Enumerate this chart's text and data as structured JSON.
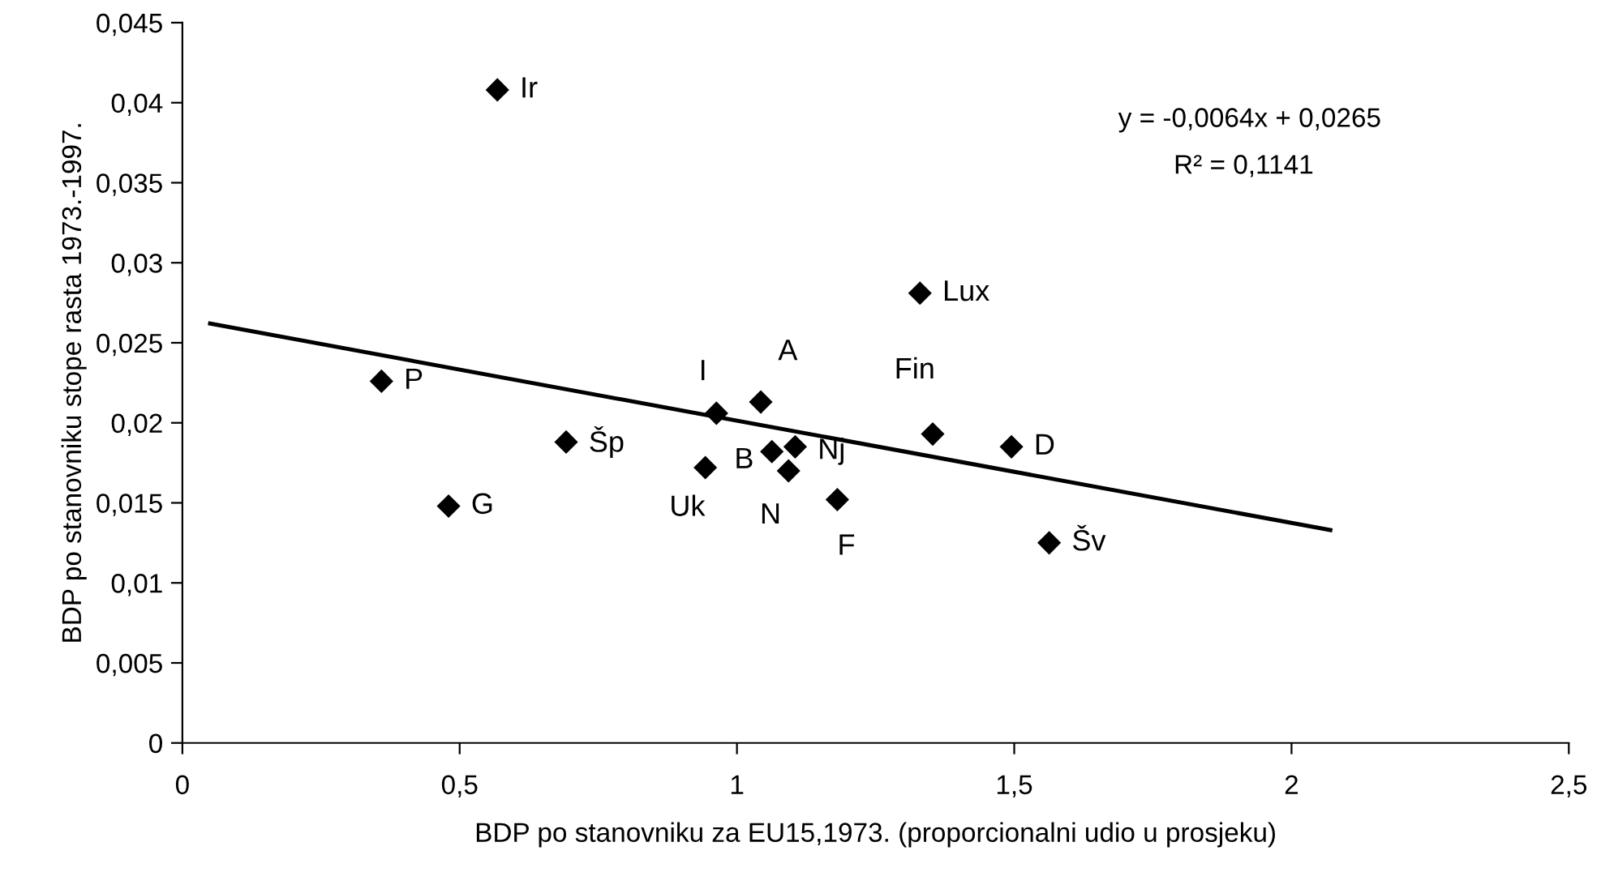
{
  "chart_data": {
    "type": "scatter",
    "xlabel": "BDP po stanovniku za EU15,1973. (proporcionalni udio u prosjeku)",
    "ylabel": "BDP po stanovniku stope rasta 1973.-1997.",
    "xlim": [
      0,
      2.5
    ],
    "ylim": [
      0,
      0.045
    ],
    "xticks": [
      0,
      {
        "value": 0.5,
        "label": "0,5"
      },
      1,
      {
        "value": 1.5,
        "label": "1,5"
      },
      2,
      {
        "value": 2.5,
        "label": "2,5"
      }
    ],
    "yticks": [
      0,
      {
        "value": 0.005,
        "label": "0,005"
      },
      {
        "value": 0.01,
        "label": "0,01"
      },
      {
        "value": 0.015,
        "label": "0,015"
      },
      {
        "value": 0.02,
        "label": "0,02"
      },
      {
        "value": 0.025,
        "label": "0,025"
      },
      {
        "value": 0.03,
        "label": "0,03"
      },
      {
        "value": 0.035,
        "label": "0,035"
      },
      {
        "value": 0.04,
        "label": "0,04"
      },
      {
        "value": 0.045,
        "label": "0,045"
      }
    ],
    "grid": false,
    "marker": "diamond",
    "series": [
      {
        "color": "#000000",
        "x": [
          0.568,
          0.359,
          0.692,
          0.48,
          0.963,
          1.043,
          0.943,
          1.063,
          1.105,
          1.093,
          1.181,
          1.33,
          1.353,
          1.495,
          1.563
        ],
        "values": [
          0.0408,
          0.0226,
          0.0188,
          0.0148,
          0.0206,
          0.0213,
          0.0172,
          0.0182,
          0.0185,
          0.017,
          0.0152,
          0.0281,
          0.0193,
          0.0185,
          0.0125
        ]
      },
      {
        "type": "line",
        "color": "#000000",
        "marker": "none",
        "line_style": "solid",
        "x": [
          0.05,
          2.07
        ],
        "values": [
          0.0262,
          0.0133
        ]
      }
    ],
    "annotations": [
      {
        "text": "Ir",
        "x": 0.568,
        "y": 0.0408
      },
      {
        "text": "P",
        "x": 0.359,
        "y": 0.0226
      },
      {
        "text": "Šp",
        "x": 0.692,
        "y": 0.0188
      },
      {
        "text": "G",
        "x": 0.48,
        "y": 0.0148
      },
      {
        "text": "I",
        "x": 0.963,
        "y": 0.0206
      },
      {
        "text": "A",
        "x": 1.043,
        "y": 0.0213
      },
      {
        "text": "Uk",
        "x": 0.943,
        "y": 0.0172
      },
      {
        "text": "B",
        "x": 1.063,
        "y": 0.0182
      },
      {
        "text": "Nj",
        "x": 1.105,
        "y": 0.0185
      },
      {
        "text": "N",
        "x": 1.093,
        "y": 0.017
      },
      {
        "text": "F",
        "x": 1.181,
        "y": 0.0152
      },
      {
        "text": "Lux",
        "x": 1.33,
        "y": 0.0281
      },
      {
        "text": "Fin",
        "x": 1.353,
        "y": 0.0193
      },
      {
        "text": "D",
        "x": 1.495,
        "y": 0.0185
      },
      {
        "text": "Šv",
        "x": 1.563,
        "y": 0.0125
      },
      "y = -0,0064x + 0,0265",
      "R² = 0,1141"
    ]
  }
}
